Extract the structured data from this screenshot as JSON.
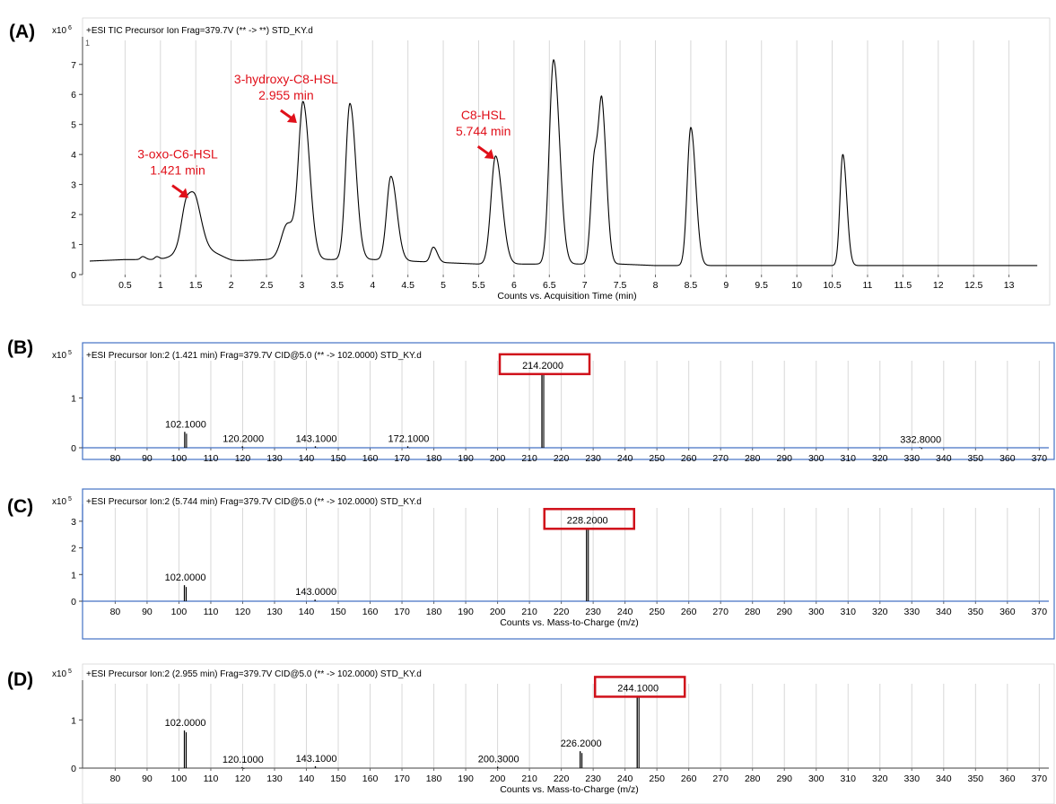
{
  "chart_data": [
    {
      "panel": "(A)",
      "type": "line",
      "header": "+ESI TIC Precursor Ion Frag=379.7V (** -> **) STD_KY.d",
      "scale_label": "x10",
      "scale_exp": "6",
      "corner_label": "1",
      "xlabel": "Counts vs. Acquisition Time (min)",
      "xlim": [
        0,
        13.5
      ],
      "ylim": [
        0,
        7.8
      ],
      "xticks": [
        "0.5",
        "1",
        "1.5",
        "2",
        "2.5",
        "3",
        "3.5",
        "4",
        "4.5",
        "5",
        "5.5",
        "6",
        "6.5",
        "7",
        "7.5",
        "8",
        "8.5",
        "9",
        "9.5",
        "10",
        "10.5",
        "11",
        "11.5",
        "12",
        "12.5",
        "13"
      ],
      "yticks": [
        "0",
        "1",
        "2",
        "3",
        "4",
        "5",
        "6",
        "7"
      ],
      "baseline": [
        [
          0,
          0.45
        ],
        [
          0.5,
          0.5
        ],
        [
          1.0,
          0.5
        ],
        [
          1.2,
          0.65
        ],
        [
          2.0,
          0.45
        ],
        [
          2.5,
          0.5
        ],
        [
          3.5,
          0.5
        ],
        [
          4.0,
          0.5
        ],
        [
          4.5,
          0.45
        ],
        [
          5.0,
          0.4
        ],
        [
          5.5,
          0.35
        ],
        [
          6.0,
          0.35
        ],
        [
          7.0,
          0.35
        ],
        [
          7.5,
          0.35
        ],
        [
          8.0,
          0.3
        ],
        [
          9.0,
          0.3
        ],
        [
          10.0,
          0.3
        ],
        [
          11.0,
          0.3
        ],
        [
          12.0,
          0.3
        ],
        [
          13.0,
          0.3
        ],
        [
          13.4,
          0.3
        ]
      ],
      "peaks": [
        {
          "t": 0.75,
          "h": 0.1,
          "w": 0.03
        },
        {
          "t": 0.95,
          "h": 0.1,
          "w": 0.03
        },
        {
          "t": 1.38,
          "h": 1.9,
          "w": 0.08
        },
        {
          "t": 1.52,
          "h": 1.0,
          "w": 0.07
        },
        {
          "t": 1.75,
          "h": 0.2,
          "w": 0.1
        },
        {
          "t": 2.8,
          "h": 1.2,
          "w": 0.09
        },
        {
          "t": 3.02,
          "h": 5.0,
          "w": 0.065
        },
        {
          "t": 3.68,
          "h": 5.2,
          "w": 0.06
        },
        {
          "t": 4.26,
          "h": 2.8,
          "w": 0.06
        },
        {
          "t": 4.86,
          "h": 0.5,
          "w": 0.04
        },
        {
          "t": 5.74,
          "h": 3.6,
          "w": 0.065
        },
        {
          "t": 6.56,
          "h": 6.8,
          "w": 0.06
        },
        {
          "t": 7.14,
          "h": 3.6,
          "w": 0.05
        },
        {
          "t": 7.25,
          "h": 4.4,
          "w": 0.045
        },
        {
          "t": 8.5,
          "h": 4.6,
          "w": 0.05
        },
        {
          "t": 10.65,
          "h": 3.7,
          "w": 0.04
        }
      ],
      "annotations": [
        {
          "lines": [
            "3-oxo-C6-HSL",
            "1.421 min"
          ],
          "t": 1.421,
          "y": 2.55
        },
        {
          "lines": [
            "3-hydroxy-C8-HSL",
            "2.955 min"
          ],
          "t": 2.955,
          "y": 5.05
        },
        {
          "lines": [
            "C8-HSL",
            "5.744 min"
          ],
          "t": 5.744,
          "y": 3.85
        }
      ]
    },
    {
      "panel": "(B)",
      "type": "bar",
      "header": "+ESI Precursor Ion:2 (1.421 min) Frag=379.7V CID@5.0 (** -> 102.0000) STD_KY.d",
      "scale_label": "x10",
      "scale_exp": "5",
      "xlabel": "",
      "xlim": [
        72,
        373
      ],
      "ylim": [
        0,
        1.75
      ],
      "xticks": [
        "80",
        "90",
        "100",
        "110",
        "120",
        "130",
        "140",
        "150",
        "160",
        "170",
        "180",
        "190",
        "200",
        "210",
        "220",
        "230",
        "240",
        "250",
        "260",
        "270",
        "280",
        "290",
        "300",
        "310",
        "320",
        "330",
        "340",
        "350",
        "360",
        "370"
      ],
      "yticks": [
        "0",
        "1"
      ],
      "peaks": [
        {
          "mz": 102.1,
          "intensity": 0.32,
          "label": "102.1000"
        },
        {
          "mz": 120.2,
          "intensity": 0.03,
          "label": "120.2000"
        },
        {
          "mz": 143.1,
          "intensity": 0.03,
          "label": "143.1000"
        },
        {
          "mz": 172.1,
          "intensity": 0.03,
          "label": "172.1000"
        },
        {
          "mz": 214.2,
          "intensity": 1.5,
          "label": "214.2000",
          "boxed": true
        },
        {
          "mz": 332.8,
          "intensity": 0.01,
          "label": "332.8000"
        }
      ]
    },
    {
      "panel": "(C)",
      "type": "bar",
      "header": "+ESI Precursor Ion:2 (5.744 min) Frag=379.7V CID@5.0 (** -> 102.0000) STD_KY.d",
      "scale_label": "x10",
      "scale_exp": "5",
      "xlabel": "Counts vs. Mass-to-Charge (m/z)",
      "xlim": [
        72,
        373
      ],
      "ylim": [
        0,
        3.5
      ],
      "xticks": [
        "80",
        "90",
        "100",
        "110",
        "120",
        "130",
        "140",
        "150",
        "160",
        "170",
        "180",
        "190",
        "200",
        "210",
        "220",
        "230",
        "240",
        "250",
        "260",
        "270",
        "280",
        "290",
        "300",
        "310",
        "320",
        "330",
        "340",
        "350",
        "360",
        "370"
      ],
      "yticks": [
        "0",
        "1",
        "2",
        "3"
      ],
      "peaks": [
        {
          "mz": 102.0,
          "intensity": 0.6,
          "label": "102.0000"
        },
        {
          "mz": 143.0,
          "intensity": 0.06,
          "label": "143.0000"
        },
        {
          "mz": 228.2,
          "intensity": 2.75,
          "label": "228.2000",
          "boxed": true
        }
      ]
    },
    {
      "panel": "(D)",
      "type": "bar",
      "header": "+ESI Precursor Ion:2 (2.955 min) Frag=379.7V CID@5.0 (** -> 102.0000) STD_KY.d",
      "scale_label": "x10",
      "scale_exp": "5",
      "xlabel": "Counts vs. Mass-to-Charge (m/z)",
      "xlim": [
        72,
        373
      ],
      "ylim": [
        0,
        1.75
      ],
      "xticks": [
        "80",
        "90",
        "100",
        "110",
        "120",
        "130",
        "140",
        "150",
        "160",
        "170",
        "180",
        "190",
        "200",
        "210",
        "220",
        "230",
        "240",
        "250",
        "260",
        "270",
        "280",
        "290",
        "300",
        "310",
        "320",
        "330",
        "340",
        "350",
        "360",
        "370"
      ],
      "yticks": [
        "0",
        "1"
      ],
      "peaks": [
        {
          "mz": 102.0,
          "intensity": 0.78,
          "label": "102.0000"
        },
        {
          "mz": 120.1,
          "intensity": 0.02,
          "label": "120.1000"
        },
        {
          "mz": 143.1,
          "intensity": 0.04,
          "label": "143.1000"
        },
        {
          "mz": 200.3,
          "intensity": 0.03,
          "label": "200.3000"
        },
        {
          "mz": 226.2,
          "intensity": 0.35,
          "label": "226.2000"
        },
        {
          "mz": 244.1,
          "intensity": 1.5,
          "label": "244.1000",
          "boxed": true
        }
      ]
    }
  ],
  "colors": {
    "trace": "#000000",
    "annotation": "#e0101a",
    "highlight_box": "#d0101a",
    "grid": "#d8d8d8",
    "axis_frame": "#4472c4",
    "axis_text": "#000000"
  }
}
